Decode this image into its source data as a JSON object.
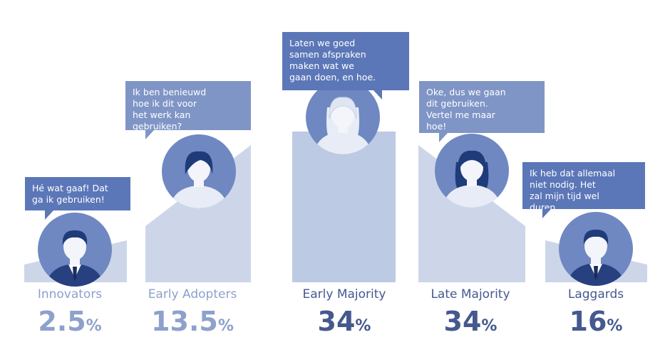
{
  "colors": {
    "light": "#cdd6e9",
    "lighter": "#bccae3",
    "circle": "#6f88c2",
    "dark": "#5b77b8",
    "mid": "#7f95c6",
    "label_light": "#8ea0cc",
    "label_dark": "#45598f"
  },
  "chart_data": {
    "type": "area",
    "categories": [
      "Innovators",
      "Early Adopters",
      "Early Majority",
      "Late Majority",
      "Laggards"
    ],
    "values": [
      2.5,
      13.5,
      34,
      34,
      16
    ],
    "value_suffix": "%",
    "quotes": [
      "Hé wat gaaf! Dat\nga ik gebruiken!",
      "Ik ben benieuwd\nhoe ik dit voor\nhet werk kan\ngebruiken?",
      "Laten we goed\nsamen afspraken\nmaken wat we\ngaan doen, en hoe.",
      "Oke, dus we gaan\ndit gebruiken.\nVertel me maar\nhoe!",
      "Ik heb dat allemaal\nniet nodig. Het\nzal mijn tijd wel\nduren."
    ],
    "avatar_icons": [
      "man-suit-icon",
      "woman-short-hair-icon",
      "woman-long-hair-icon",
      "woman-bob-hair-icon",
      "man-suit-icon"
    ]
  }
}
